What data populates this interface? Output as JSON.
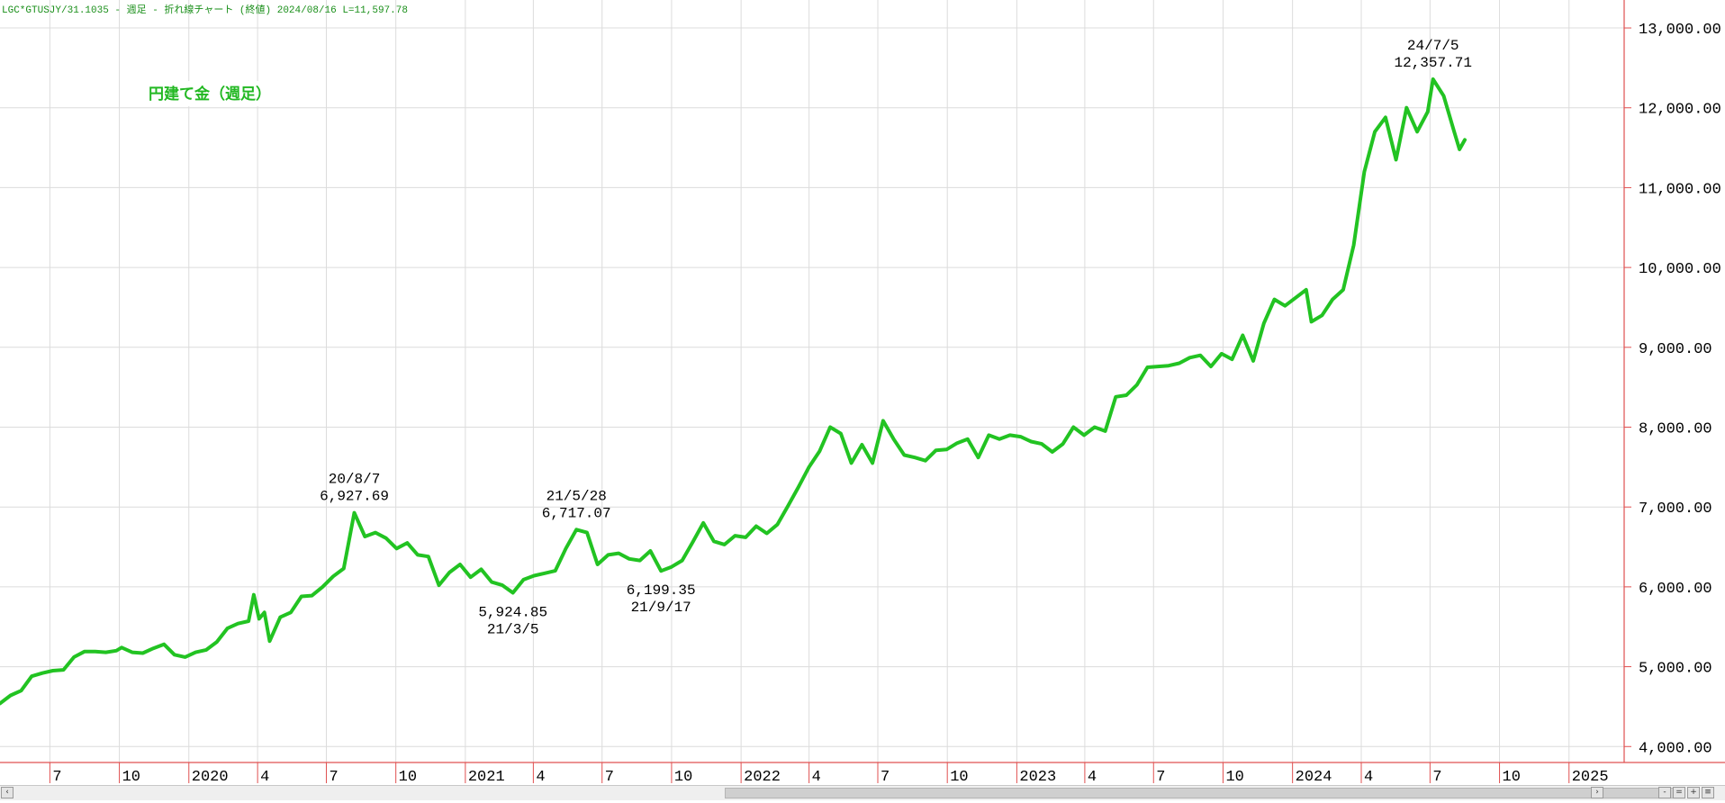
{
  "header": {
    "title": "LGC*GTUSJY/31.1035 - 週足 - 折れ線チャート (終値)  2024/08/16 L=11,597.78"
  },
  "chart_data": {
    "type": "line",
    "title": "円建て金（週足）",
    "x_start": "2019-04-26",
    "x_end": "2025-03-15",
    "ylim": [
      3800,
      13350
    ],
    "y_ticks": [
      {
        "value": 4000,
        "label": "4,000.00"
      },
      {
        "value": 5000,
        "label": "5,000.00"
      },
      {
        "value": 6000,
        "label": "6,000.00"
      },
      {
        "value": 7000,
        "label": "7,000.00"
      },
      {
        "value": 8000,
        "label": "8,000.00"
      },
      {
        "value": 9000,
        "label": "9,000.00"
      },
      {
        "value": 10000,
        "label": "10,000.00"
      },
      {
        "value": 11000,
        "label": "11,000.00"
      },
      {
        "value": 12000,
        "label": "12,000.00"
      },
      {
        "value": 13000,
        "label": "13,000.00"
      }
    ],
    "x_ticks": [
      {
        "date": "2019-07-01",
        "label": "7"
      },
      {
        "date": "2019-10-01",
        "label": "10"
      },
      {
        "date": "2020-01-01",
        "label": "2020"
      },
      {
        "date": "2020-04-01",
        "label": "4"
      },
      {
        "date": "2020-07-01",
        "label": "7"
      },
      {
        "date": "2020-10-01",
        "label": "10"
      },
      {
        "date": "2021-01-01",
        "label": "2021"
      },
      {
        "date": "2021-04-01",
        "label": "4"
      },
      {
        "date": "2021-07-01",
        "label": "7"
      },
      {
        "date": "2021-10-01",
        "label": "10"
      },
      {
        "date": "2022-01-01",
        "label": "2022"
      },
      {
        "date": "2022-04-01",
        "label": "4"
      },
      {
        "date": "2022-07-01",
        "label": "7"
      },
      {
        "date": "2022-10-01",
        "label": "10"
      },
      {
        "date": "2023-01-01",
        "label": "2023"
      },
      {
        "date": "2023-04-01",
        "label": "4"
      },
      {
        "date": "2023-07-01",
        "label": "7"
      },
      {
        "date": "2023-10-01",
        "label": "10"
      },
      {
        "date": "2024-01-01",
        "label": "2024"
      },
      {
        "date": "2024-04-01",
        "label": "4"
      },
      {
        "date": "2024-07-01",
        "label": "7"
      },
      {
        "date": "2024-10-01",
        "label": "10"
      },
      {
        "date": "2025-01-01",
        "label": "2025"
      }
    ],
    "grid": true,
    "series": [
      {
        "color": "#22c322",
        "points": [
          [
            "2019-04-26",
            4540
          ],
          [
            "2019-05-10",
            4640
          ],
          [
            "2019-05-24",
            4700
          ],
          [
            "2019-06-07",
            4880
          ],
          [
            "2019-06-21",
            4920
          ],
          [
            "2019-07-05",
            4950
          ],
          [
            "2019-07-19",
            4960
          ],
          [
            "2019-08-02",
            5120
          ],
          [
            "2019-08-16",
            5190
          ],
          [
            "2019-08-30",
            5190
          ],
          [
            "2019-09-13",
            5180
          ],
          [
            "2019-09-27",
            5200
          ],
          [
            "2019-10-04",
            5240
          ],
          [
            "2019-10-18",
            5180
          ],
          [
            "2019-11-01",
            5170
          ],
          [
            "2019-11-15",
            5230
          ],
          [
            "2019-11-29",
            5280
          ],
          [
            "2019-12-13",
            5150
          ],
          [
            "2019-12-27",
            5120
          ],
          [
            "2020-01-10",
            5180
          ],
          [
            "2020-01-24",
            5210
          ],
          [
            "2020-02-07",
            5310
          ],
          [
            "2020-02-21",
            5480
          ],
          [
            "2020-03-06",
            5540
          ],
          [
            "2020-03-20",
            5570
          ],
          [
            "2020-03-27",
            5900
          ],
          [
            "2020-04-03",
            5600
          ],
          [
            "2020-04-10",
            5680
          ],
          [
            "2020-04-17",
            5320
          ],
          [
            "2020-05-01",
            5620
          ],
          [
            "2020-05-15",
            5680
          ],
          [
            "2020-05-29",
            5880
          ],
          [
            "2020-06-12",
            5890
          ],
          [
            "2020-06-26",
            6000
          ],
          [
            "2020-07-10",
            6130
          ],
          [
            "2020-07-24",
            6230
          ],
          [
            "2020-08-07",
            6927.69
          ],
          [
            "2020-08-21",
            6630
          ],
          [
            "2020-09-04",
            6680
          ],
          [
            "2020-09-18",
            6610
          ],
          [
            "2020-10-02",
            6480
          ],
          [
            "2020-10-16",
            6550
          ],
          [
            "2020-10-30",
            6400
          ],
          [
            "2020-11-13",
            6380
          ],
          [
            "2020-11-27",
            6020
          ],
          [
            "2020-12-11",
            6180
          ],
          [
            "2020-12-25",
            6280
          ],
          [
            "2021-01-08",
            6120
          ],
          [
            "2021-01-22",
            6220
          ],
          [
            "2021-02-05",
            6060
          ],
          [
            "2021-02-19",
            6020
          ],
          [
            "2021-03-05",
            5924.85
          ],
          [
            "2021-03-19",
            6090
          ],
          [
            "2021-04-02",
            6140
          ],
          [
            "2021-04-16",
            6170
          ],
          [
            "2021-04-30",
            6200
          ],
          [
            "2021-05-14",
            6480
          ],
          [
            "2021-05-28",
            6717.07
          ],
          [
            "2021-06-11",
            6680
          ],
          [
            "2021-06-25",
            6280
          ],
          [
            "2021-07-09",
            6400
          ],
          [
            "2021-07-23",
            6420
          ],
          [
            "2021-08-06",
            6350
          ],
          [
            "2021-08-20",
            6330
          ],
          [
            "2021-09-03",
            6450
          ],
          [
            "2021-09-17",
            6199.35
          ],
          [
            "2021-10-01",
            6250
          ],
          [
            "2021-10-15",
            6330
          ],
          [
            "2021-10-29",
            6560
          ],
          [
            "2021-11-12",
            6800
          ],
          [
            "2021-11-26",
            6570
          ],
          [
            "2021-12-10",
            6530
          ],
          [
            "2021-12-24",
            6640
          ],
          [
            "2022-01-07",
            6620
          ],
          [
            "2022-01-21",
            6760
          ],
          [
            "2022-02-04",
            6670
          ],
          [
            "2022-02-18",
            6780
          ],
          [
            "2022-03-04",
            7010
          ],
          [
            "2022-03-18",
            7250
          ],
          [
            "2022-04-01",
            7500
          ],
          [
            "2022-04-15",
            7700
          ],
          [
            "2022-04-29",
            8000
          ],
          [
            "2022-05-13",
            7920
          ],
          [
            "2022-05-27",
            7550
          ],
          [
            "2022-06-10",
            7780
          ],
          [
            "2022-06-24",
            7550
          ],
          [
            "2022-07-08",
            8080
          ],
          [
            "2022-07-22",
            7850
          ],
          [
            "2022-08-05",
            7650
          ],
          [
            "2022-08-19",
            7620
          ],
          [
            "2022-09-02",
            7580
          ],
          [
            "2022-09-16",
            7710
          ],
          [
            "2022-09-30",
            7720
          ],
          [
            "2022-10-14",
            7800
          ],
          [
            "2022-10-28",
            7850
          ],
          [
            "2022-11-11",
            7620
          ],
          [
            "2022-11-25",
            7900
          ],
          [
            "2022-12-09",
            7850
          ],
          [
            "2022-12-23",
            7900
          ],
          [
            "2023-01-06",
            7880
          ],
          [
            "2023-01-20",
            7820
          ],
          [
            "2023-02-03",
            7790
          ],
          [
            "2023-02-17",
            7690
          ],
          [
            "2023-03-03",
            7790
          ],
          [
            "2023-03-17",
            8000
          ],
          [
            "2023-03-31",
            7900
          ],
          [
            "2023-04-14",
            8000
          ],
          [
            "2023-04-28",
            7950
          ],
          [
            "2023-05-12",
            8380
          ],
          [
            "2023-05-26",
            8400
          ],
          [
            "2023-06-09",
            8530
          ],
          [
            "2023-06-23",
            8750
          ],
          [
            "2023-07-07",
            8760
          ],
          [
            "2023-07-21",
            8770
          ],
          [
            "2023-08-04",
            8800
          ],
          [
            "2023-08-18",
            8870
          ],
          [
            "2023-09-01",
            8900
          ],
          [
            "2023-09-15",
            8760
          ],
          [
            "2023-09-29",
            8920
          ],
          [
            "2023-10-13",
            8850
          ],
          [
            "2023-10-27",
            9150
          ],
          [
            "2023-11-10",
            8830
          ],
          [
            "2023-11-24",
            9300
          ],
          [
            "2023-12-08",
            9600
          ],
          [
            "2023-12-22",
            9520
          ],
          [
            "2024-01-05",
            9620
          ],
          [
            "2024-01-19",
            9720
          ],
          [
            "2024-01-26",
            9320
          ],
          [
            "2024-02-09",
            9400
          ],
          [
            "2024-02-23",
            9600
          ],
          [
            "2024-03-08",
            9720
          ],
          [
            "2024-03-22",
            10280
          ],
          [
            "2024-04-05",
            11200
          ],
          [
            "2024-04-19",
            11700
          ],
          [
            "2024-05-03",
            11880
          ],
          [
            "2024-05-17",
            11350
          ],
          [
            "2024-05-31",
            12000
          ],
          [
            "2024-06-14",
            11700
          ],
          [
            "2024-06-28",
            11950
          ],
          [
            "2024-07-05",
            12357.71
          ],
          [
            "2024-07-19",
            12150
          ],
          [
            "2024-08-02",
            11700
          ],
          [
            "2024-08-09",
            11480
          ],
          [
            "2024-08-16",
            11597.78
          ]
        ]
      }
    ],
    "annotations": [
      {
        "date": "2020-08-07",
        "lines": [
          "20/8/7",
          "6,927.69"
        ],
        "position": "above"
      },
      {
        "date": "2021-03-05",
        "lines": [
          "5,924.85",
          "21/3/5"
        ],
        "position": "below"
      },
      {
        "date": "2021-05-28",
        "lines": [
          "21/5/28",
          "6,717.07"
        ],
        "position": "above"
      },
      {
        "date": "2021-09-17",
        "lines": [
          "6,199.35",
          "21/9/17"
        ],
        "position": "below"
      },
      {
        "date": "2024-07-05",
        "lines": [
          "24/7/5",
          "12,357.71"
        ],
        "position": "above"
      }
    ]
  },
  "colors": {
    "line": "#22c322",
    "axis": "#e05050",
    "grid": "#dcdcdc",
    "title_text": "#22b822",
    "header_text": "#1a8f1a"
  },
  "scrollbar": {
    "left_arrow": "‹",
    "right_arrow": "›"
  }
}
